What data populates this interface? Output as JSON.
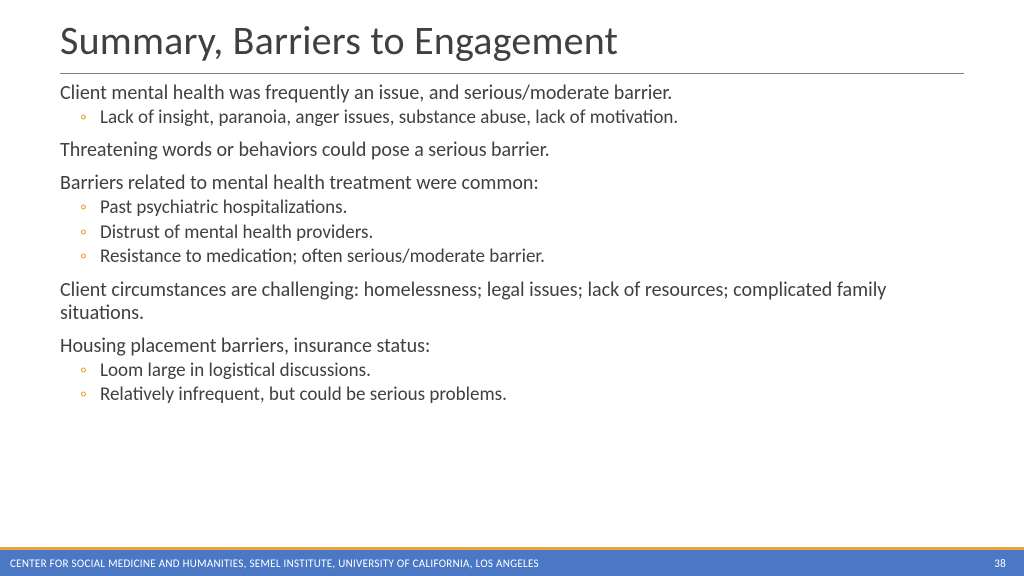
{
  "colors": {
    "bullet_accent": "#e8a33d",
    "footer_bg": "#4a78c4",
    "footer_accent": "#e8a33d",
    "text": "#404040",
    "rule": "#7f7f7f",
    "footer_text": "#ffffff",
    "background": "#ffffff"
  },
  "typography": {
    "title_fontsize": 40,
    "title_weight": 300,
    "section_fontsize": 20,
    "sub_fontsize": 19,
    "footer_fontsize": 11,
    "font_family": "Calibri"
  },
  "title": "Summary, Barriers to Engagement",
  "sections": [
    {
      "text": "Client mental health was frequently an issue, and serious/moderate barrier.",
      "subs": [
        "Lack of insight, paranoia, anger issues, substance abuse, lack of motivation."
      ]
    },
    {
      "text": "Threatening words or behaviors could pose a serious barrier.",
      "subs": []
    },
    {
      "text": "Barriers related to mental health treatment were common:",
      "subs": [
        "Past psychiatric hospitalizations.",
        "Distrust of mental health providers.",
        "Resistance to medication; often serious/moderate barrier."
      ]
    },
    {
      "text": "Client circumstances are challenging: homelessness; legal issues; lack of resources; complicated family situations.",
      "subs": []
    },
    {
      "text": "Housing placement barriers, insurance status:",
      "subs": [
        "Loom large in logistical discussions.",
        "Relatively infrequent, but could be serious problems."
      ]
    }
  ],
  "footer": {
    "org": "CENTER FOR SOCIAL MEDICINE AND HUMANITIES, SEMEL INSTITUTE, UNIVERSITY OF CALIFORNIA, LOS ANGELES",
    "page": "38"
  }
}
